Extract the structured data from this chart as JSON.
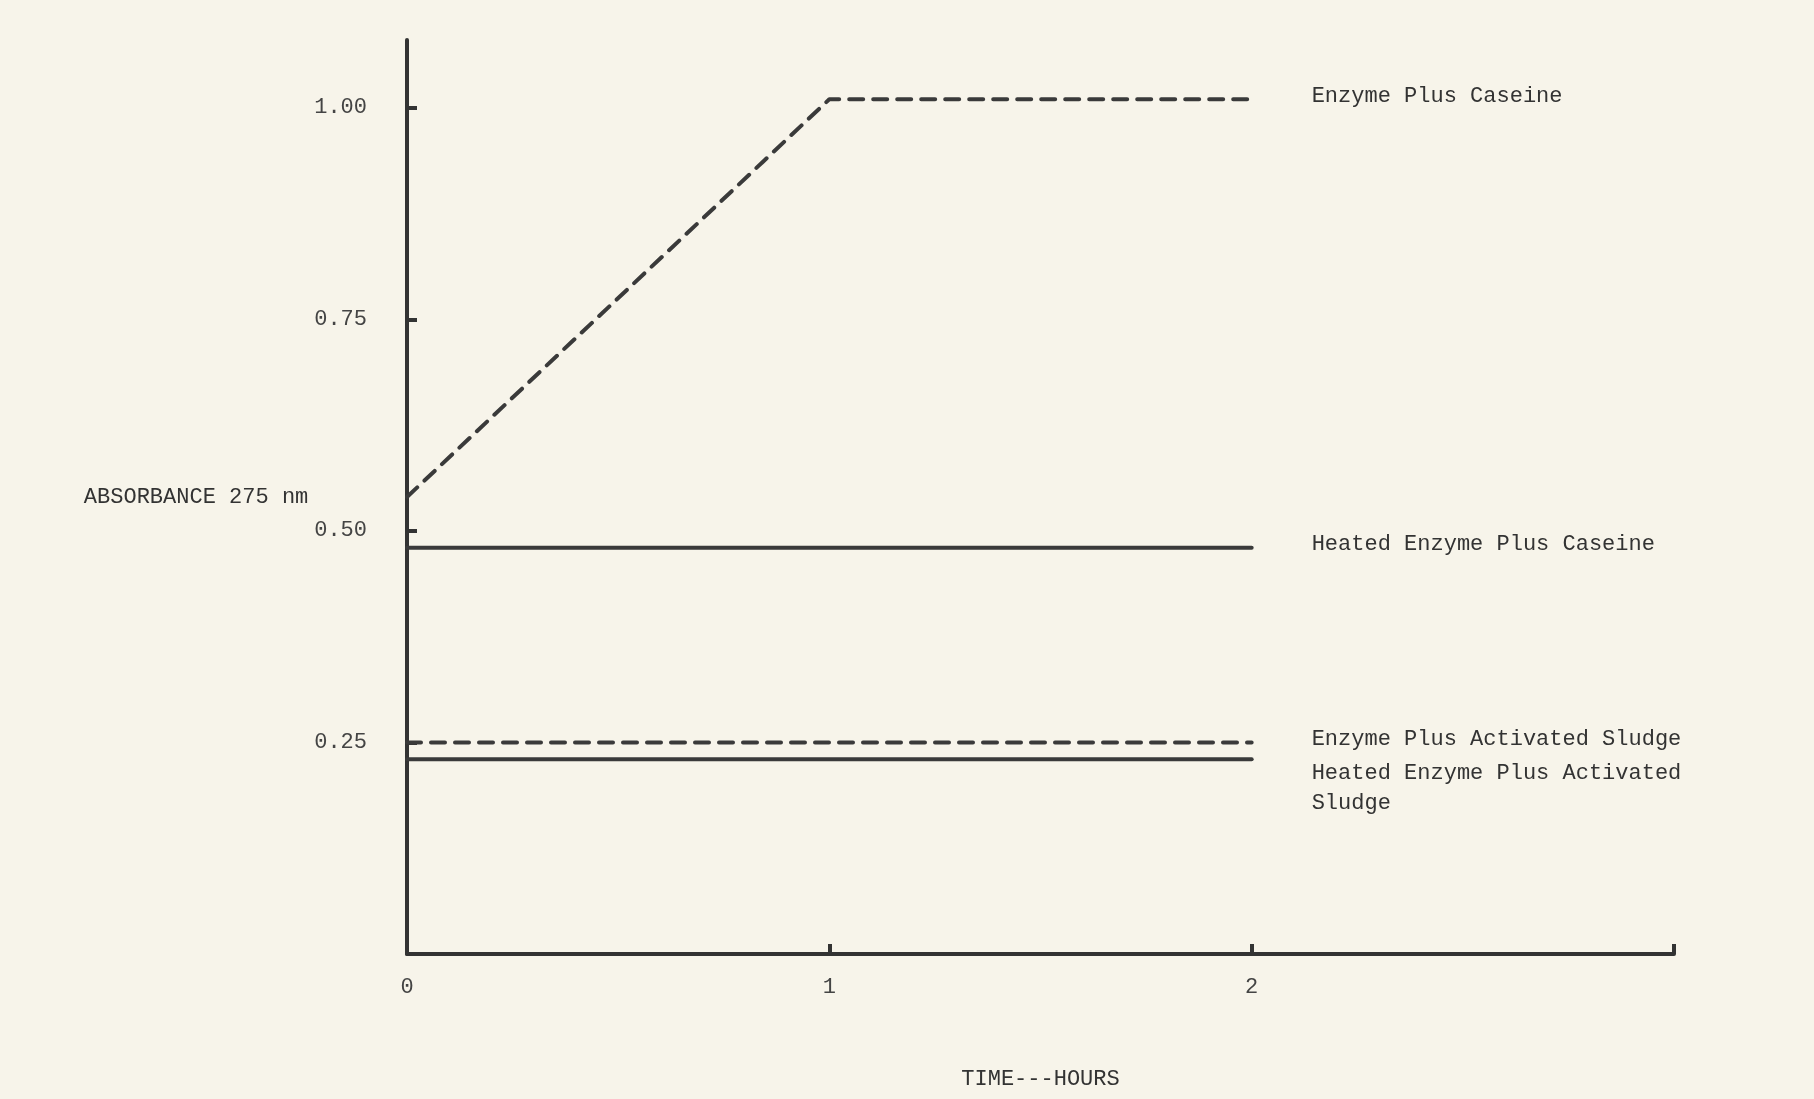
{
  "chart_data": {
    "type": "line",
    "xlabel": "TIME---HOURS",
    "ylabel": "ABSORBANCE 275 nm",
    "x": [
      0,
      1,
      2
    ],
    "xlim": [
      0,
      3
    ],
    "xticks": [
      0,
      1,
      2,
      {
        "value": 3,
        "label": null
      }
    ],
    "ylim": [
      0,
      1.08
    ],
    "yticks": [
      {
        "value": 0.25,
        "label": "0.25"
      },
      {
        "value": 0.5,
        "label": "0.50"
      },
      {
        "value": 0.75,
        "label": "0.75"
      },
      {
        "value": 1,
        "label": "1.00"
      }
    ],
    "grid": false,
    "legend": false,
    "marker": "none",
    "series": [
      {
        "name": "Enzyme Plus Caseine",
        "color": "#3a3a3a",
        "line_style": "dashed",
        "values": [
          0.54,
          1.01,
          1.01
        ]
      },
      {
        "name": "Heated Enzyme Plus Caseine",
        "color": "#3a3a3a",
        "line_style": "solid",
        "values": [
          0.48,
          0.48,
          0.48
        ]
      },
      {
        "name": "Enzyme Plus Activated Sludge",
        "color": "#3a3a3a",
        "line_style": "dashed",
        "values": [
          0.25,
          0.25,
          0.25
        ]
      },
      {
        "name": "Heated Enzyme Plus Activated Sludge",
        "color": "#3a3a3a",
        "line_style": "solid",
        "values": [
          0.23,
          0.23,
          0.23
        ]
      }
    ]
  }
}
